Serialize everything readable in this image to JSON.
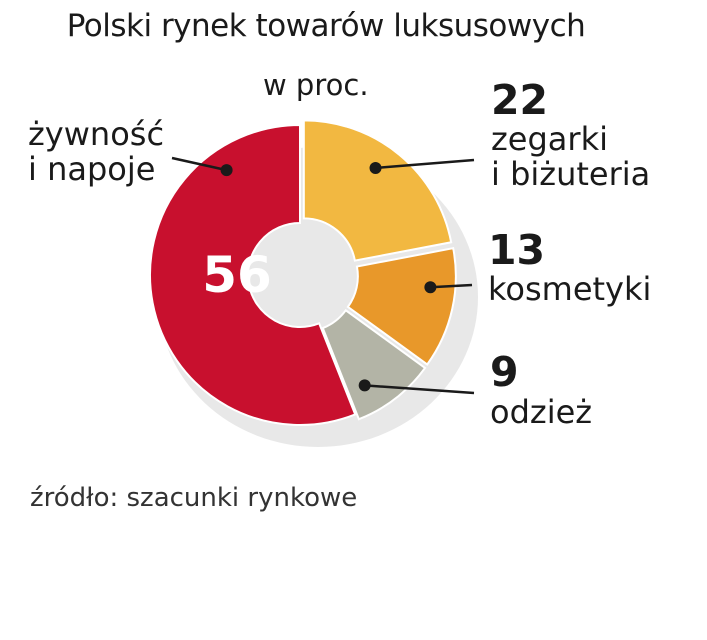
{
  "chart_data": {
    "type": "pie",
    "title": "Polski rynek towarów luksusowych",
    "subtitle": "w proc.",
    "source": "źródło: szacunki rynkowe",
    "categories": [
      "zegarki i biżuteria",
      "kosmetyki",
      "odzież",
      "żywność i napoje"
    ],
    "values": [
      22,
      13,
      9,
      56
    ],
    "value_labels": [
      "22",
      "13",
      "9",
      "56"
    ],
    "label_lines": [
      [
        "zegarki",
        "i biżuteria"
      ],
      [
        "kosmetyki"
      ],
      [
        "odzież"
      ],
      [
        "żywność",
        "i napoje"
      ]
    ],
    "colors": [
      "#f2b841",
      "#e8982a",
      "#b3b4a6",
      "#c8102e"
    ],
    "donut": true
  }
}
